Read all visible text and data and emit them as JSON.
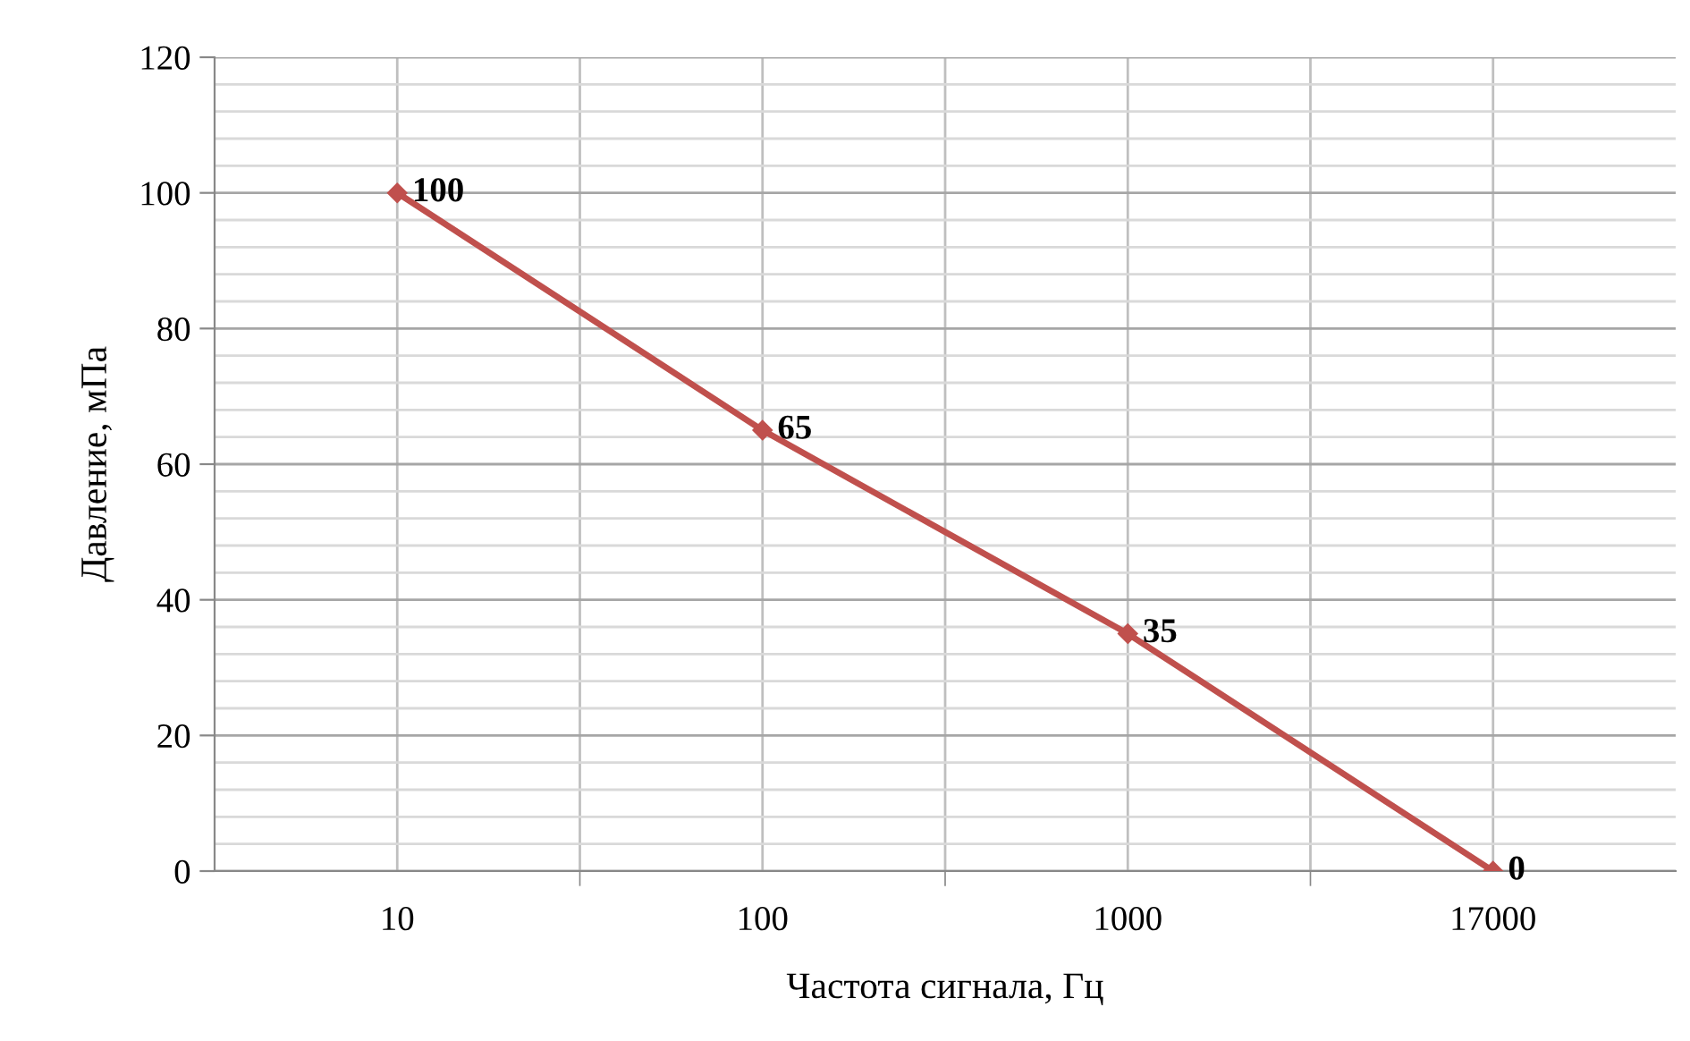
{
  "chart_data": {
    "type": "line",
    "xlabel": "Частота сигнала, Гц",
    "ylabel": "Давление, мПа",
    "categories": [
      "10",
      "100",
      "1000",
      "17000"
    ],
    "series": [
      {
        "color": "#c0504d",
        "values": [
          100,
          65,
          35,
          0
        ]
      }
    ],
    "ylim": [
      0,
      120
    ],
    "yticks": [
      0,
      20,
      40,
      60,
      80,
      100,
      120
    ],
    "grid": true,
    "marker": "diamond",
    "line_style": "solid",
    "data_labels": true,
    "legend": false
  }
}
